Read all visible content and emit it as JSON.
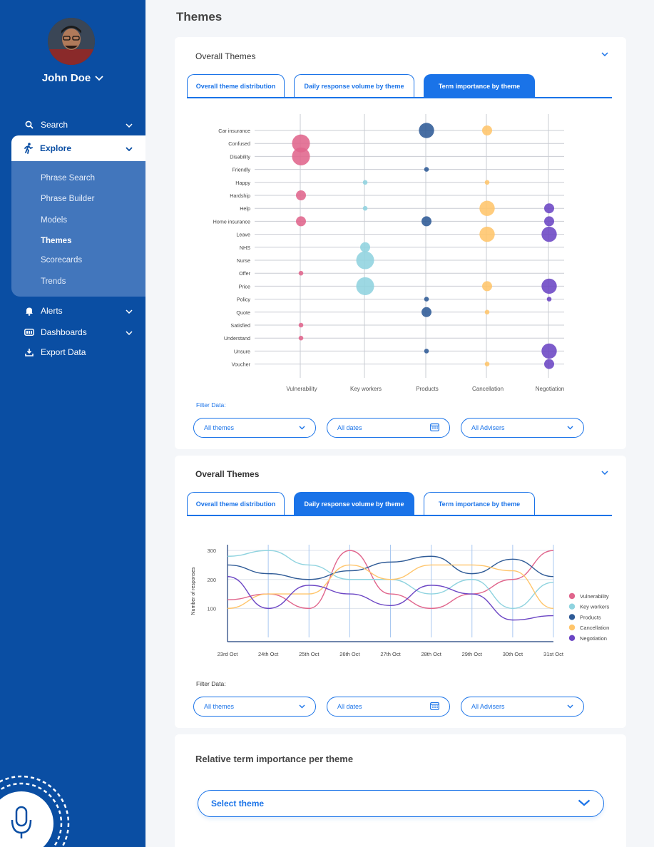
{
  "sidebar": {
    "user_name": "John Doe",
    "nav": [
      {
        "label": "Search",
        "icon": "search-icon"
      },
      {
        "label": "Explore",
        "icon": "walk-icon"
      },
      {
        "label": "Alerts",
        "icon": "bell-icon"
      },
      {
        "label": "Dashboards",
        "icon": "dashboard-icon"
      },
      {
        "label": "Export Data",
        "icon": "download-icon"
      }
    ],
    "explore_sub": [
      "Phrase Search",
      "Phrase Builder",
      "Models",
      "Themes",
      "Scorecards",
      "Trends"
    ],
    "active_sub": "Themes"
  },
  "page": {
    "title": "Themes"
  },
  "card1": {
    "title": "Overall Themes",
    "tabs": [
      "Overall theme distribution",
      "Daily response volume by theme",
      "Term importance by theme"
    ],
    "active_tab": 2,
    "filter_label": "Filter Data:",
    "filters": {
      "themes": "All themes",
      "dates": "All dates",
      "advisers": "All Advisers"
    }
  },
  "card2": {
    "title": "Overall Themes",
    "tabs": [
      "Overall theme distribution",
      "Daily response volume by theme",
      "Term importance by theme"
    ],
    "active_tab": 1,
    "filter_label": "Filter Data:",
    "filters": {
      "themes": "All themes",
      "dates": "All dates",
      "advisers": "All Advisers"
    }
  },
  "card3": {
    "title": "Relative term importance per theme",
    "select_placeholder": "Select theme"
  },
  "colors": {
    "primary": "#1a73e8",
    "sidebar": "#0a4ea3",
    "Vulnerability": "#e0658c",
    "Key workers": "#8fd3df",
    "Products": "#2e5a96",
    "Cancellation": "#ffc56b",
    "Negotiation": "#6b45c4"
  },
  "chart_data": [
    {
      "type": "scatter",
      "title": "Term importance by theme",
      "themes": [
        "Vulnerability",
        "Key workers",
        "Products",
        "Cancellation",
        "Negotiation"
      ],
      "terms": [
        "Car insurance",
        "Confused",
        "Disability",
        "Friendly",
        "Happy",
        "Hardship",
        "Help",
        "Home insurance",
        "Leave",
        "NHS",
        "Nurse",
        "Offer",
        "Price",
        "Policy",
        "Quote",
        "Satisfied",
        "Understand",
        "Unsure",
        "Voucher"
      ],
      "bubbles": [
        {
          "theme": "Products",
          "term": "Car insurance",
          "size": 3
        },
        {
          "theme": "Cancellation",
          "term": "Car insurance",
          "size": 2
        },
        {
          "theme": "Vulnerability",
          "term": "Confused",
          "size": 3.5
        },
        {
          "theme": "Vulnerability",
          "term": "Disability",
          "size": 3.5
        },
        {
          "theme": "Products",
          "term": "Friendly",
          "size": 1
        },
        {
          "theme": "Key workers",
          "term": "Happy",
          "size": 1
        },
        {
          "theme": "Cancellation",
          "term": "Happy",
          "size": 1
        },
        {
          "theme": "Vulnerability",
          "term": "Hardship",
          "size": 2
        },
        {
          "theme": "Key workers",
          "term": "Help",
          "size": 1
        },
        {
          "theme": "Cancellation",
          "term": "Help",
          "size": 3
        },
        {
          "theme": "Negotiation",
          "term": "Help",
          "size": 2
        },
        {
          "theme": "Vulnerability",
          "term": "Home insurance",
          "size": 2
        },
        {
          "theme": "Products",
          "term": "Home insurance",
          "size": 2
        },
        {
          "theme": "Negotiation",
          "term": "Home insurance",
          "size": 2
        },
        {
          "theme": "Cancellation",
          "term": "Leave",
          "size": 3
        },
        {
          "theme": "Negotiation",
          "term": "Leave",
          "size": 3
        },
        {
          "theme": "Key workers",
          "term": "NHS",
          "size": 2
        },
        {
          "theme": "Key workers",
          "term": "Nurse",
          "size": 3.5
        },
        {
          "theme": "Vulnerability",
          "term": "Offer",
          "size": 1
        },
        {
          "theme": "Key workers",
          "term": "Price",
          "size": 3.5
        },
        {
          "theme": "Cancellation",
          "term": "Price",
          "size": 2
        },
        {
          "theme": "Negotiation",
          "term": "Price",
          "size": 3
        },
        {
          "theme": "Products",
          "term": "Policy",
          "size": 1
        },
        {
          "theme": "Negotiation",
          "term": "Policy",
          "size": 1
        },
        {
          "theme": "Products",
          "term": "Quote",
          "size": 2
        },
        {
          "theme": "Cancellation",
          "term": "Quote",
          "size": 1
        },
        {
          "theme": "Vulnerability",
          "term": "Satisfied",
          "size": 1
        },
        {
          "theme": "Vulnerability",
          "term": "Understand",
          "size": 1
        },
        {
          "theme": "Products",
          "term": "Unsure",
          "size": 1
        },
        {
          "theme": "Negotiation",
          "term": "Unsure",
          "size": 3
        },
        {
          "theme": "Cancellation",
          "term": "Voucher",
          "size": 1
        },
        {
          "theme": "Negotiation",
          "term": "Voucher",
          "size": 2
        }
      ]
    },
    {
      "type": "line",
      "title": "Daily response volume by theme",
      "ylabel": "Number of responses",
      "xlabel": "",
      "ylim": [
        0,
        320
      ],
      "yticks": [
        100,
        200,
        300
      ],
      "categories": [
        "23rd Oct",
        "24th Oct",
        "25th Oct",
        "26th Oct",
        "27th Oct",
        "28th Oct",
        "29th Oct",
        "30th Oct",
        "31st Oct"
      ],
      "legend_position": "right",
      "series": [
        {
          "name": "Vulnerability",
          "values": [
            130,
            150,
            100,
            300,
            150,
            100,
            150,
            200,
            300
          ]
        },
        {
          "name": "Key workers",
          "values": [
            280,
            300,
            250,
            200,
            200,
            150,
            200,
            100,
            190
          ]
        },
        {
          "name": "Products",
          "values": [
            250,
            220,
            200,
            230,
            260,
            280,
            220,
            270,
            210
          ]
        },
        {
          "name": "Cancellation",
          "values": [
            100,
            150,
            150,
            250,
            200,
            250,
            250,
            230,
            100
          ]
        },
        {
          "name": "Negotiation",
          "values": [
            210,
            100,
            180,
            150,
            110,
            180,
            150,
            60,
            75
          ]
        }
      ]
    }
  ]
}
